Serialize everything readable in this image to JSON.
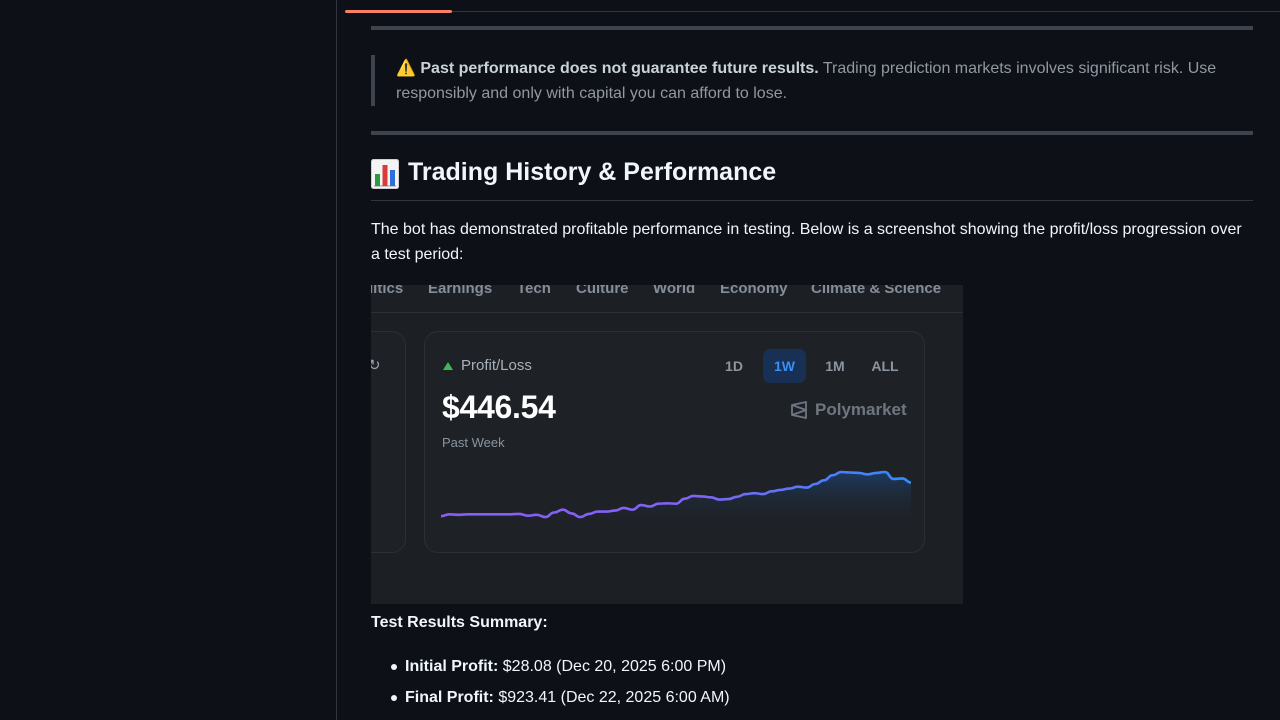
{
  "warning": {
    "emoji": "⚠️",
    "bold": "Past performance does not guarantee future results.",
    "text": " Trading prediction markets involves significant risk. Use responsibly and only with capital you can afford to lose."
  },
  "section": {
    "icon": "bar-chart-icon",
    "heading": "Trading History & Performance",
    "intro": "The bot has demonstrated profitable performance in testing. Below is a screenshot showing the profit/loss progression over a test period:"
  },
  "screenshot": {
    "nav": [
      "litics",
      "Earnings",
      "Tech",
      "Culture",
      "World",
      "Economy",
      "Climate & Science"
    ],
    "left_card_icon": "refresh-icon",
    "pl_label": "Profit/Loss",
    "pl_value": "$446.54",
    "pl_period": "Past Week",
    "ranges": [
      "1D",
      "1W",
      "1M",
      "ALL"
    ],
    "selected_range": "1W",
    "brand": "Polymarket",
    "colors": {
      "line_start": "#8b5cf6",
      "line_end": "#2f8cff",
      "up_triangle": "#3fb950",
      "selected_range_bg": "#173054",
      "selected_range_text": "#3b8ef5"
    },
    "trend": [
      0.04,
      0.08,
      0.07,
      0.08,
      0.08,
      0.08,
      0.08,
      0.08,
      0.08,
      0.09,
      0.05,
      0.07,
      0.02,
      0.12,
      0.18,
      0.1,
      0.02,
      0.09,
      0.14,
      0.14,
      0.16,
      0.22,
      0.18,
      0.28,
      0.25,
      0.31,
      0.32,
      0.31,
      0.42,
      0.48,
      0.47,
      0.45,
      0.4,
      0.41,
      0.46,
      0.52,
      0.54,
      0.52,
      0.58,
      0.61,
      0.64,
      0.68,
      0.66,
      0.74,
      0.82,
      0.93,
      1.0,
      0.99,
      0.98,
      0.95,
      0.98,
      1.0,
      0.85,
      0.86,
      0.77
    ]
  },
  "summary": {
    "heading": "Test Results Summary:",
    "items": [
      {
        "label": "Initial Profit:",
        "value": " $28.08 (Dec 20, 2025 6:00 PM)"
      },
      {
        "label": "Final Profit:",
        "value": " $923.41 (Dec 22, 2025 6:00 AM)"
      }
    ]
  }
}
